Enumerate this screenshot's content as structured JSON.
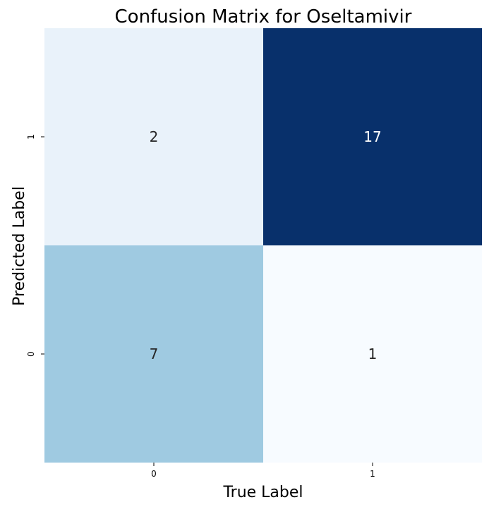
{
  "chart_data": {
    "type": "heatmap",
    "title": "Confusion Matrix for Oseltamivir",
    "xlabel": "True Label",
    "ylabel": "Predicted Label",
    "x_categories": [
      "0",
      "1"
    ],
    "y_categories_top_to_bottom": [
      "1",
      "0"
    ],
    "matrix_top_to_bottom": [
      [
        2,
        17
      ],
      [
        7,
        1
      ]
    ],
    "colormap": "Blues",
    "value_range": [
      1,
      17
    ],
    "colorbar": false,
    "grid": false,
    "cell_colors_top_to_bottom": [
      [
        "#e9f2fa",
        "#08306b"
      ],
      [
        "#9fcae1",
        "#f7fbff"
      ]
    ],
    "annotation_colors": {
      "on_light": "#262626",
      "on_dark": "#ffffff"
    }
  }
}
